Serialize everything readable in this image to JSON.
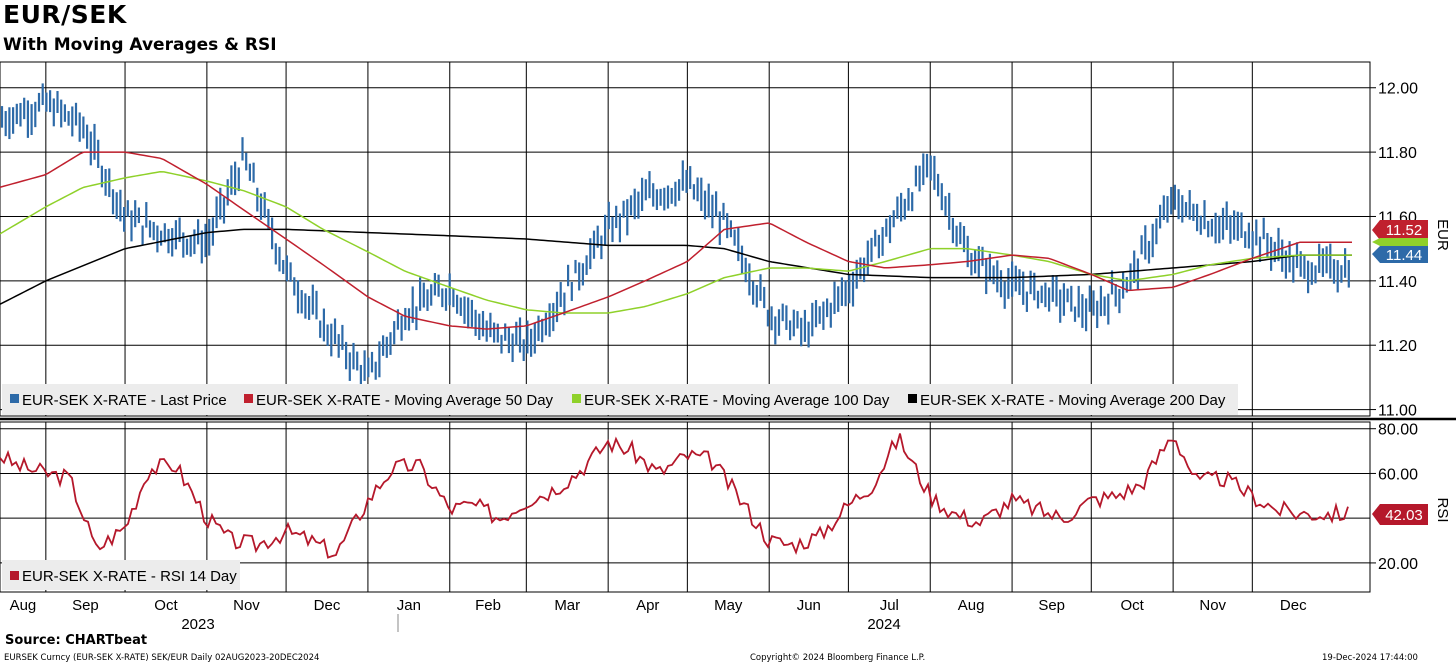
{
  "title": "EUR/SEK",
  "subtitle": "With Moving Averages & RSI",
  "source": "Source: CHARTbeat",
  "footer": {
    "left": "EURSEK Curncy (EUR-SEK X-RATE) SEK/EUR  Daily 02AUG2023-20DEC2024",
    "middle": "Copyright© 2024 Bloomberg Finance L.P.",
    "right": "19-Dec-2024 17:44:00"
  },
  "colors": {
    "price": "#2d6aa8",
    "ma50": "#c0202e",
    "ma100": "#8fd12a",
    "ma200": "#000000",
    "rsi": "#b5182b"
  },
  "chart_data": [
    {
      "type": "line",
      "panel": "price",
      "y_axis_label": "EUR",
      "ylim": [
        10.98,
        12.08
      ],
      "y_ticks": [
        "12.00",
        "11.80",
        "11.60",
        "11.40",
        "11.20",
        "11.00"
      ],
      "x_month_labels": [
        "Aug",
        "Sep",
        "Oct",
        "Nov",
        "Dec",
        "Jan",
        "Feb",
        "Mar",
        "Apr",
        "May",
        "Jun",
        "Jul",
        "Aug",
        "Sep",
        "Oct",
        "Nov",
        "Dec"
      ],
      "year_labels": [
        "2023",
        "2024"
      ],
      "grid": true,
      "legend_position": "bottom-left",
      "last_value_labels": {
        "ma50": "11.52",
        "price": "11.44"
      },
      "series": [
        {
          "name": "EUR-SEK X-RATE - Last Price",
          "key": "price",
          "x": [
            "2023-08-01",
            "2023-08-15",
            "2023-09-01",
            "2023-09-15",
            "2023-10-01",
            "2023-10-15",
            "2023-11-01",
            "2023-11-15",
            "2023-12-01",
            "2023-12-15",
            "2024-01-01",
            "2024-01-15",
            "2024-02-01",
            "2024-02-15",
            "2024-03-01",
            "2024-03-15",
            "2024-04-01",
            "2024-04-15",
            "2024-05-01",
            "2024-05-15",
            "2024-06-01",
            "2024-06-15",
            "2024-07-01",
            "2024-07-15",
            "2024-08-01",
            "2024-08-15",
            "2024-09-01",
            "2024-09-15",
            "2024-10-01",
            "2024-10-15",
            "2024-11-01",
            "2024-11-15",
            "2024-12-01",
            "2024-12-19"
          ],
          "y": [
            11.72,
            11.9,
            11.95,
            11.88,
            11.6,
            11.55,
            11.52,
            11.78,
            11.43,
            11.26,
            11.1,
            11.3,
            11.38,
            11.24,
            11.2,
            11.36,
            11.56,
            11.66,
            11.7,
            11.58,
            11.3,
            11.24,
            11.38,
            11.55,
            11.76,
            11.48,
            11.38,
            11.36,
            11.3,
            11.4,
            11.65,
            11.58,
            11.55,
            11.44
          ]
        },
        {
          "name": "EUR-SEK X-RATE - Moving Average 50 Day",
          "key": "ma50",
          "x": [
            "2023-08-01",
            "2023-09-01",
            "2023-09-15",
            "2023-10-01",
            "2023-10-15",
            "2023-11-01",
            "2023-11-15",
            "2023-12-01",
            "2023-12-15",
            "2024-01-01",
            "2024-01-15",
            "2024-02-01",
            "2024-02-15",
            "2024-03-01",
            "2024-03-15",
            "2024-04-01",
            "2024-04-15",
            "2024-05-01",
            "2024-05-15",
            "2024-06-01",
            "2024-06-15",
            "2024-07-01",
            "2024-07-15",
            "2024-08-01",
            "2024-08-15",
            "2024-09-01",
            "2024-09-15",
            "2024-10-01",
            "2024-10-15",
            "2024-11-01",
            "2024-11-15",
            "2024-12-01",
            "2024-12-19"
          ],
          "y": [
            11.66,
            11.73,
            11.8,
            11.8,
            11.78,
            11.7,
            11.62,
            11.53,
            11.45,
            11.35,
            11.29,
            11.26,
            11.25,
            11.26,
            11.3,
            11.35,
            11.4,
            11.46,
            11.56,
            11.58,
            11.52,
            11.46,
            11.44,
            11.45,
            11.46,
            11.48,
            11.47,
            11.42,
            11.37,
            11.38,
            11.42,
            11.47,
            11.52
          ]
        },
        {
          "name": "EUR-SEK X-RATE - Moving Average 100 Day",
          "key": "ma100",
          "x": [
            "2023-08-01",
            "2023-09-01",
            "2023-09-15",
            "2023-10-01",
            "2023-10-15",
            "2023-11-01",
            "2023-11-15",
            "2023-12-01",
            "2023-12-15",
            "2024-01-01",
            "2024-01-15",
            "2024-02-01",
            "2024-02-15",
            "2024-03-01",
            "2024-03-15",
            "2024-04-01",
            "2024-04-15",
            "2024-05-01",
            "2024-05-15",
            "2024-06-01",
            "2024-06-15",
            "2024-07-01",
            "2024-07-15",
            "2024-08-01",
            "2024-08-15",
            "2024-09-01",
            "2024-09-15",
            "2024-10-01",
            "2024-10-15",
            "2024-11-01",
            "2024-11-15",
            "2024-12-01",
            "2024-12-19"
          ],
          "y": [
            11.48,
            11.63,
            11.69,
            11.72,
            11.74,
            11.71,
            11.68,
            11.63,
            11.56,
            11.49,
            11.43,
            11.38,
            11.34,
            11.31,
            11.3,
            11.3,
            11.32,
            11.36,
            11.41,
            11.44,
            11.44,
            11.43,
            11.46,
            11.5,
            11.5,
            11.48,
            11.46,
            11.42,
            11.4,
            11.42,
            11.45,
            11.47,
            11.48
          ]
        },
        {
          "name": "EUR-SEK X-RATE - Moving Average 200 Day",
          "key": "ma200",
          "x": [
            "2023-08-01",
            "2023-09-01",
            "2023-10-01",
            "2023-11-01",
            "2023-11-15",
            "2023-12-01",
            "2024-01-01",
            "2024-02-01",
            "2024-03-01",
            "2024-04-01",
            "2024-05-01",
            "2024-05-15",
            "2024-06-01",
            "2024-07-01",
            "2024-08-01",
            "2024-09-01",
            "2024-10-01",
            "2024-11-01",
            "2024-12-01",
            "2024-12-19"
          ],
          "y": [
            11.27,
            11.4,
            11.5,
            11.55,
            11.56,
            11.56,
            11.55,
            11.54,
            11.53,
            11.51,
            11.51,
            11.5,
            11.46,
            11.42,
            11.41,
            11.41,
            11.42,
            11.44,
            11.46,
            11.48
          ]
        }
      ]
    },
    {
      "type": "line",
      "panel": "rsi",
      "y_axis_label": "RSI",
      "ylim": [
        7,
        83
      ],
      "y_ticks": [
        "80.00",
        "60.00",
        "20.00"
      ],
      "grid": true,
      "legend_position": "bottom-left",
      "last_value_labels": {
        "rsi": "42.03"
      },
      "series": [
        {
          "name": "EUR-SEK X-RATE - RSI 14 Day",
          "key": "rsi",
          "x": [
            "2023-08-01",
            "2023-08-10",
            "2023-08-20",
            "2023-09-01",
            "2023-09-10",
            "2023-09-20",
            "2023-10-01",
            "2023-10-10",
            "2023-10-20",
            "2023-11-01",
            "2023-11-10",
            "2023-11-20",
            "2023-12-01",
            "2023-12-10",
            "2023-12-20",
            "2024-01-01",
            "2024-01-10",
            "2024-01-20",
            "2024-02-01",
            "2024-02-10",
            "2024-02-20",
            "2024-03-01",
            "2024-03-10",
            "2024-03-20",
            "2024-04-01",
            "2024-04-10",
            "2024-04-20",
            "2024-05-01",
            "2024-05-10",
            "2024-05-20",
            "2024-06-01",
            "2024-06-10",
            "2024-06-20",
            "2024-07-01",
            "2024-07-10",
            "2024-07-20",
            "2024-08-01",
            "2024-08-10",
            "2024-08-20",
            "2024-09-01",
            "2024-09-10",
            "2024-09-20",
            "2024-10-01",
            "2024-10-10",
            "2024-10-20",
            "2024-11-01",
            "2024-11-10",
            "2024-11-20",
            "2024-12-01",
            "2024-12-10",
            "2024-12-19"
          ],
          "y": [
            68,
            72,
            64,
            60,
            58,
            26,
            36,
            62,
            64,
            40,
            30,
            28,
            34,
            30,
            24,
            48,
            62,
            64,
            44,
            46,
            40,
            48,
            52,
            60,
            74,
            70,
            60,
            68,
            66,
            50,
            30,
            28,
            32,
            46,
            55,
            76,
            50,
            42,
            38,
            48,
            44,
            40,
            48,
            50,
            55,
            78,
            56,
            58,
            50,
            44,
            42
          ]
        }
      ]
    }
  ]
}
